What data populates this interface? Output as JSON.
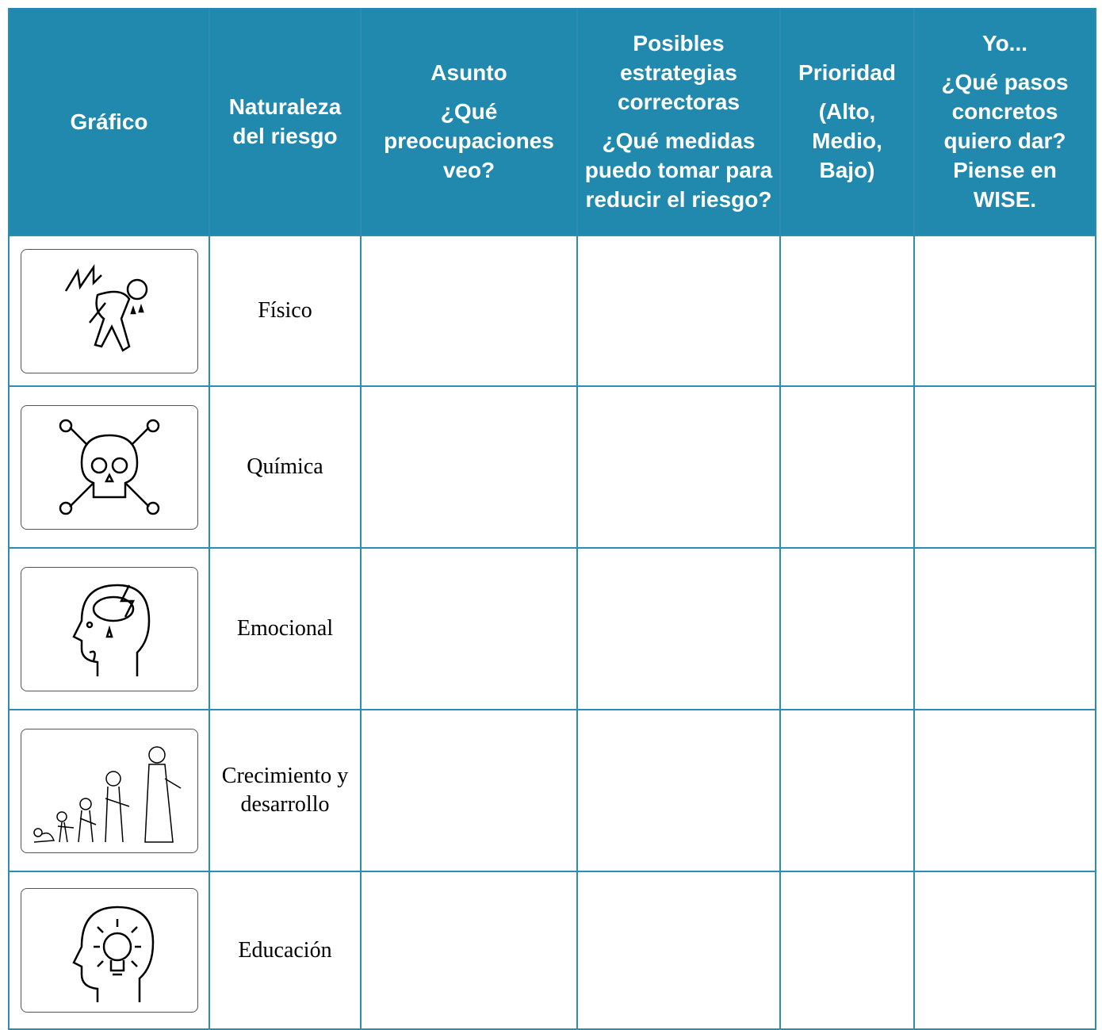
{
  "table": {
    "header": [
      [
        "Gráfico"
      ],
      [
        "Naturaleza del riesgo"
      ],
      [
        "Asunto",
        "¿Qué preocupaciones veo?"
      ],
      [
        "Posibles estrategias correctoras",
        "¿Qué medidas puedo tomar para reducir el riesgo?"
      ],
      [
        "Prioridad",
        "(Alto, Medio, Bajo)"
      ],
      [
        "Yo...",
        "¿Qué pasos concretos quiero dar? Piense en WISE."
      ]
    ],
    "rows": [
      [
        "Físico"
      ],
      [
        "Química"
      ],
      [
        "Emocional"
      ],
      [
        "Crecimiento y desarrollo"
      ],
      [
        "Educación"
      ]
    ]
  }
}
